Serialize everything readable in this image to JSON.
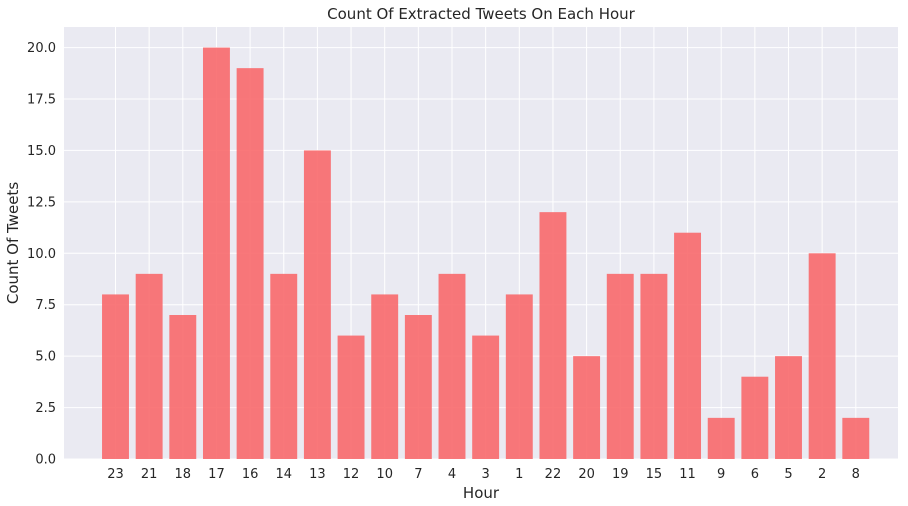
{
  "chart_data": {
    "type": "bar",
    "title": "Count Of Extracted Tweets On Each Hour",
    "xlabel": "Hour",
    "ylabel": "Count Of Tweets",
    "categories": [
      "23",
      "21",
      "18",
      "17",
      "16",
      "14",
      "13",
      "12",
      "10",
      "7",
      "4",
      "3",
      "1",
      "22",
      "20",
      "19",
      "15",
      "11",
      "9",
      "6",
      "5",
      "2",
      "8"
    ],
    "values": [
      8,
      9,
      7,
      20,
      19,
      9,
      15,
      6,
      8,
      7,
      9,
      6,
      8,
      12,
      5,
      9,
      9,
      11,
      2,
      4,
      5,
      10,
      2
    ],
    "ylim": [
      0,
      21
    ],
    "yticks": [
      "0.0",
      "2.5",
      "5.0",
      "7.5",
      "10.0",
      "12.5",
      "15.0",
      "17.5",
      "20.0"
    ],
    "grid": true,
    "bar_color": "#f8696b",
    "background_color": "#eaeaf2",
    "grid_color": "#ffffff"
  }
}
